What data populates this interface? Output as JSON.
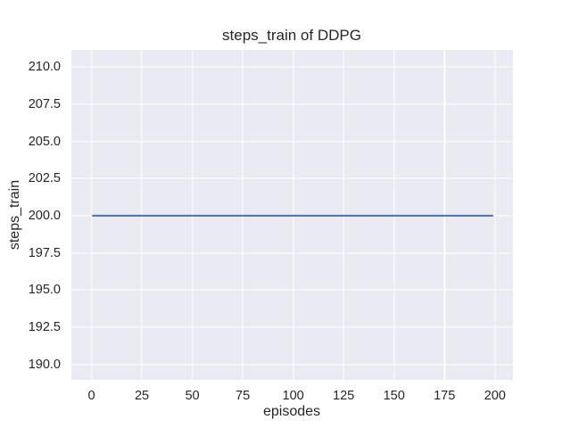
{
  "chart_data": {
    "type": "line",
    "title": "steps_train of DDPG",
    "xlabel": "episodes",
    "ylabel": "steps_train",
    "x_ticks": [
      0,
      25,
      50,
      75,
      100,
      125,
      150,
      175,
      200
    ],
    "x_tick_labels": [
      "0",
      "25",
      "50",
      "75",
      "100",
      "125",
      "150",
      "175",
      "200"
    ],
    "y_ticks": [
      190.0,
      192.5,
      195.0,
      197.5,
      200.0,
      202.5,
      205.0,
      207.5,
      210.0
    ],
    "y_tick_labels": [
      "190.0",
      "192.5",
      "195.0",
      "197.5",
      "200.0",
      "202.5",
      "205.0",
      "207.5",
      "210.0"
    ],
    "xlim": [
      -9.95,
      208.95
    ],
    "ylim": [
      188.95,
      211.15
    ],
    "grid": true,
    "legend": "none",
    "series": [
      {
        "name": "steps_train",
        "color": "#4c72b0",
        "x": [
          0,
          199
        ],
        "y": [
          200,
          200
        ]
      }
    ],
    "style": {
      "figure_background": "#ffffff",
      "plot_background": "#eaeaf2",
      "grid_color": "#ffffff",
      "text_color": "#262626"
    }
  }
}
